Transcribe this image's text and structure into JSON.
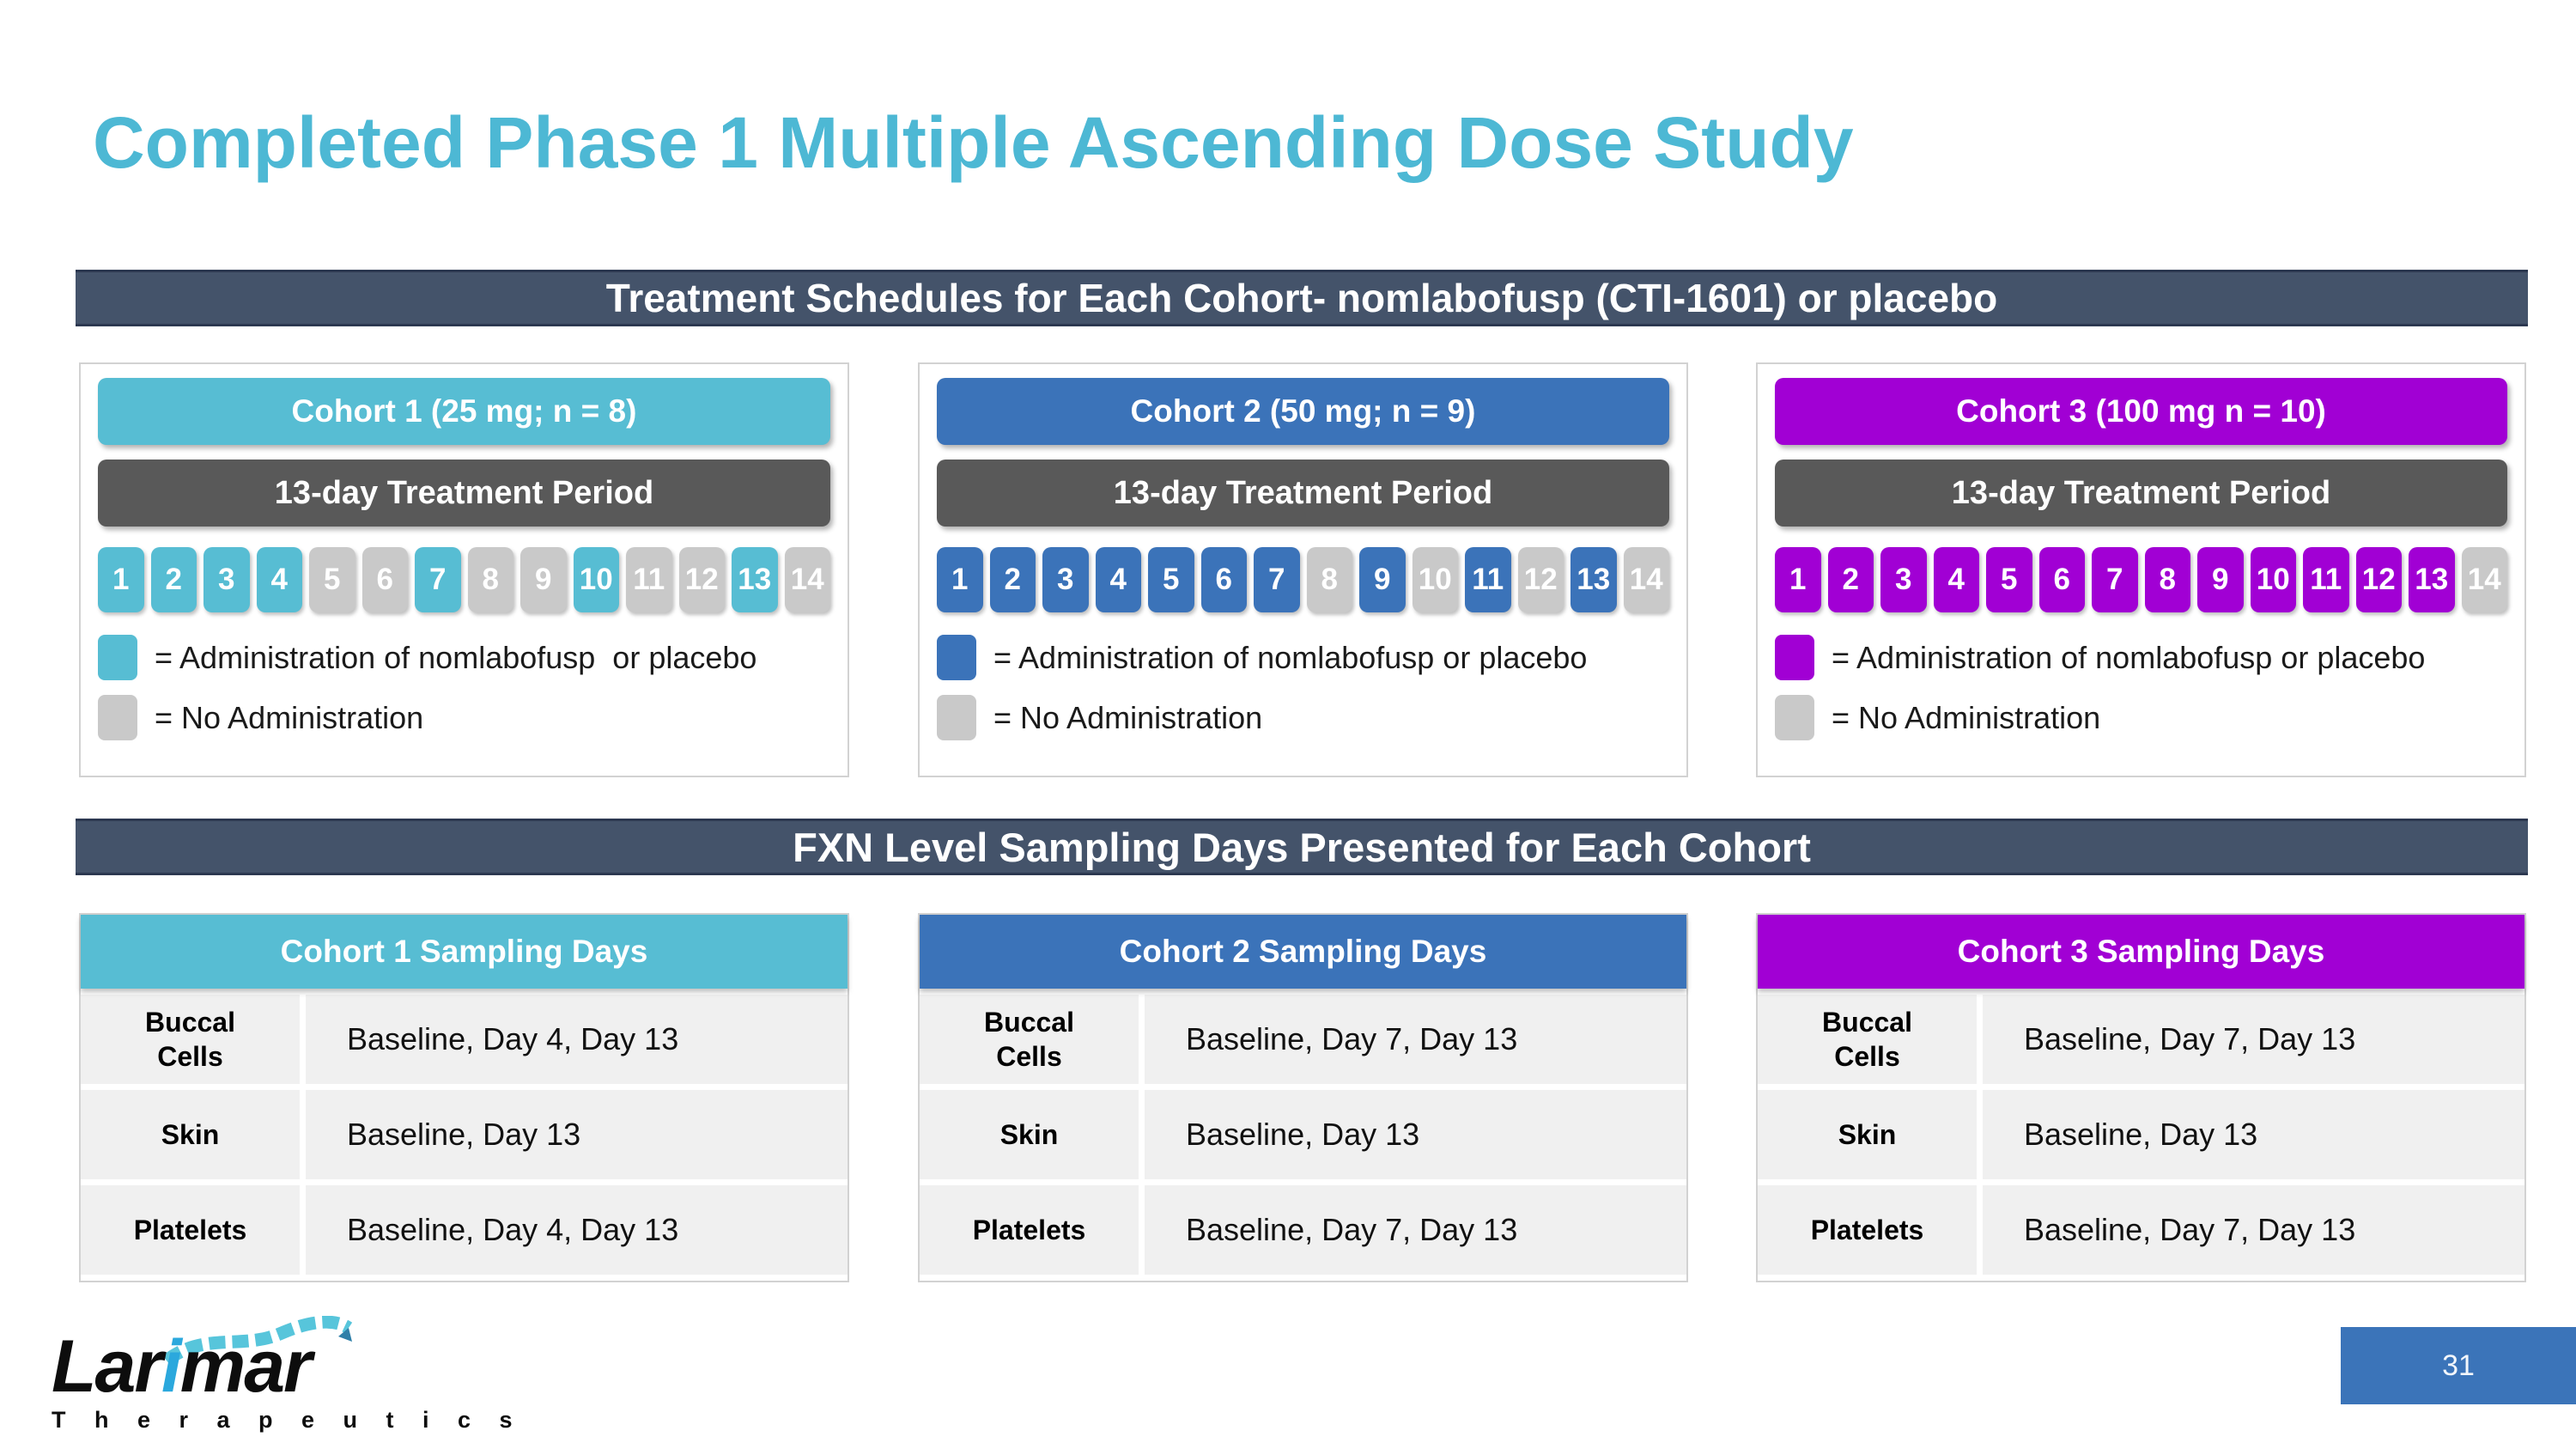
{
  "slide": {
    "title": "Completed Phase 1 Multiple Ascending Dose Study",
    "page_number": "31"
  },
  "colors": {
    "title_text": "#4DB8D4",
    "banner_bg": "#44536A",
    "banner_edge": "#2C3850",
    "treatment_bar": "#595959",
    "day_inactive": "#C9C9C9",
    "row_bg": "#F0F0F0",
    "table_border": "#D2D2D2",
    "page_box": "#3B74B9",
    "logo_accent": "#2BA8DD",
    "helix": "#57C5DB"
  },
  "banners": {
    "treatment": "Treatment Schedules for Each Cohort- nomlabofusp (CTI-1601) or placebo",
    "sampling": "FXN Level Sampling Days Presented for Each Cohort"
  },
  "cohorts": [
    {
      "header": "Cohort 1 (25 mg; n = 8)",
      "color": "#57BDD3",
      "treatment_period": "13-day Treatment Period",
      "days": [
        "1",
        "2",
        "3",
        "4",
        "5",
        "6",
        "7",
        "8",
        "9",
        "10",
        "11",
        "12",
        "13",
        "14"
      ],
      "dose_days": [
        1,
        2,
        3,
        4,
        7,
        10,
        13
      ],
      "legend_admin": "= Administration of nomlabofusp  or placebo",
      "legend_none": "= No Administration",
      "sampling": {
        "header": "Cohort 1 Sampling Days",
        "rows": [
          {
            "label": "Buccal\nCells",
            "value": "Baseline, Day 4, Day 13"
          },
          {
            "label": "Skin",
            "value": "Baseline, Day 13"
          },
          {
            "label": "Platelets",
            "value": "Baseline, Day 4, Day 13"
          }
        ]
      }
    },
    {
      "header": "Cohort 2 (50 mg; n = 9)",
      "color": "#3B73B9",
      "treatment_period": "13-day Treatment Period",
      "days": [
        "1",
        "2",
        "3",
        "4",
        "5",
        "6",
        "7",
        "8",
        "9",
        "10",
        "11",
        "12",
        "13",
        "14"
      ],
      "dose_days": [
        1,
        2,
        3,
        4,
        5,
        6,
        7,
        9,
        11,
        13
      ],
      "legend_admin": "= Administration of nomlabofusp or placebo",
      "legend_none": "= No Administration",
      "sampling": {
        "header": "Cohort 2 Sampling Days",
        "rows": [
          {
            "label": "Buccal\nCells",
            "value": "Baseline, Day 7, Day 13"
          },
          {
            "label": "Skin",
            "value": "Baseline, Day 13"
          },
          {
            "label": "Platelets",
            "value": "Baseline, Day 7, Day 13"
          }
        ]
      }
    },
    {
      "header": "Cohort 3 (100 mg n = 10)",
      "color": "#A100D4",
      "treatment_period": "13-day Treatment Period",
      "days": [
        "1",
        "2",
        "3",
        "4",
        "5",
        "6",
        "7",
        "8",
        "9",
        "10",
        "11",
        "12",
        "13",
        "14"
      ],
      "dose_days": [
        1,
        2,
        3,
        4,
        5,
        6,
        7,
        8,
        9,
        10,
        11,
        12,
        13
      ],
      "legend_admin": "= Administration of nomlabofusp or placebo",
      "legend_none": "= No Administration",
      "sampling": {
        "header": "Cohort 3 Sampling Days",
        "rows": [
          {
            "label": "Buccal\nCells",
            "value": "Baseline, Day 7, Day 13"
          },
          {
            "label": "Skin",
            "value": "Baseline, Day 13"
          },
          {
            "label": "Platelets",
            "value": "Baseline, Day 7, Day 13"
          }
        ]
      }
    }
  ],
  "logo": {
    "brand_left": "Lar",
    "brand_i": "i",
    "brand_right": "mar",
    "sub": "T h e r a p e u t i c s"
  }
}
